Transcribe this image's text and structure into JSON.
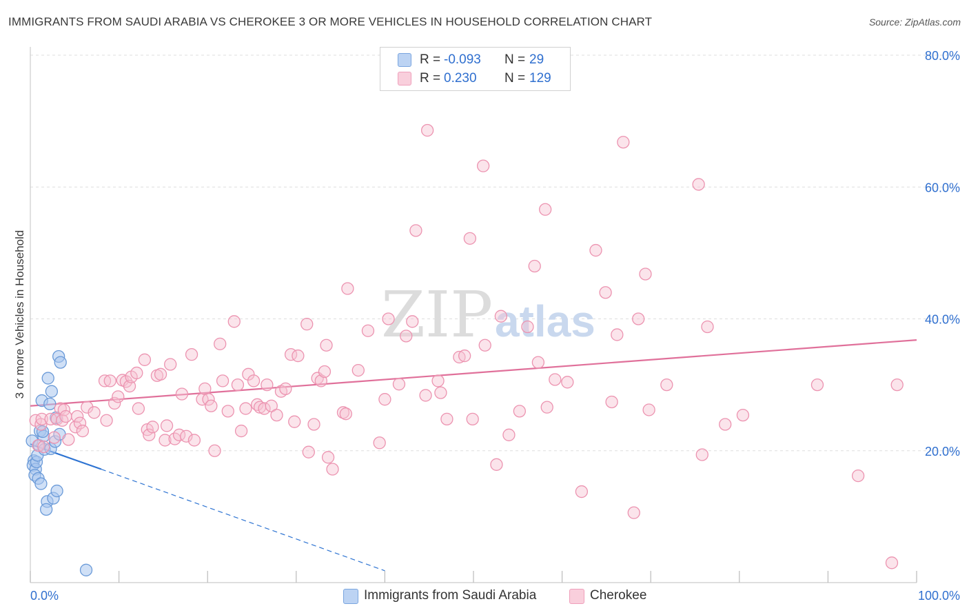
{
  "header": {
    "title": "IMMIGRANTS FROM SAUDI ARABIA VS CHEROKEE 3 OR MORE VEHICLES IN HOUSEHOLD CORRELATION CHART",
    "source": "Source: ZipAtlas.com"
  },
  "watermark": {
    "zip": "ZIP",
    "atlas": "atlas"
  },
  "legend_top": {
    "rows": [
      {
        "r_label": "R =",
        "r_value": "-0.093",
        "n_label": "N =",
        "n_value": "29"
      },
      {
        "r_label": "R =",
        "r_value": "0.230",
        "n_label": "N =",
        "n_value": "129"
      }
    ]
  },
  "legend_bottom": [
    "Immigrants from Saudi Arabia",
    "Cherokee"
  ],
  "colors": {
    "blue_fill": "#a9c6ee",
    "blue_stroke": "#6a9ad8",
    "blue_line": "#2d73d2",
    "pink_fill": "#f6c3d2",
    "pink_stroke": "#ec93b0",
    "pink_line": "#e0709a",
    "grid": "#dddddd",
    "axis_text": "#2f6fcf"
  },
  "chart_data": {
    "type": "scatter",
    "title": "IMMIGRANTS FROM SAUDI ARABIA VS CHEROKEE 3 OR MORE VEHICLES IN HOUSEHOLD CORRELATION CHART",
    "xlabel": "",
    "ylabel": "3 or more Vehicles in Household",
    "xlim": [
      0,
      100
    ],
    "ylim": [
      0,
      80
    ],
    "x_tick_labels": [
      "0.0%",
      "100.0%"
    ],
    "y_ticks": [
      20,
      40,
      60,
      80
    ],
    "y_tick_labels": [
      "20.0%",
      "40.0%",
      "60.0%",
      "80.0%"
    ],
    "grid": true,
    "legend_position": "top-center",
    "series": [
      {
        "name": "Immigrants from Saudi Arabia",
        "R": -0.093,
        "N": 29,
        "trend": {
          "x0": 0,
          "y0": 21.0,
          "x1": 8.0,
          "y1": 17.2,
          "dashed_to": [
            40.0,
            1.8
          ]
        },
        "points": [
          [
            0.2,
            21.5
          ],
          [
            0.4,
            18.5
          ],
          [
            0.3,
            17.8
          ],
          [
            0.6,
            17.2
          ],
          [
            0.7,
            18.3
          ],
          [
            0.5,
            16.3
          ],
          [
            0.9,
            15.8
          ],
          [
            0.8,
            19.3
          ],
          [
            1.0,
            20.8
          ],
          [
            1.1,
            23.0
          ],
          [
            1.2,
            15.0
          ],
          [
            1.3,
            27.6
          ],
          [
            1.5,
            22.2
          ],
          [
            1.6,
            20.2
          ],
          [
            1.9,
            12.3
          ],
          [
            1.8,
            11.1
          ],
          [
            2.0,
            31.0
          ],
          [
            2.2,
            27.1
          ],
          [
            2.4,
            29.0
          ],
          [
            2.3,
            20.3
          ],
          [
            2.6,
            12.8
          ],
          [
            2.8,
            21.4
          ],
          [
            2.9,
            25.0
          ],
          [
            3.0,
            13.9
          ],
          [
            3.2,
            34.3
          ],
          [
            3.3,
            22.5
          ],
          [
            3.4,
            33.4
          ],
          [
            6.3,
            1.9
          ],
          [
            1.4,
            22.9
          ]
        ]
      },
      {
        "name": "Cherokee",
        "R": 0.23,
        "N": 129,
        "trend": {
          "x0": 0,
          "y0": 26.8,
          "x1": 100,
          "y1": 36.8
        },
        "points": [
          [
            0.6,
            24.6
          ],
          [
            0.9,
            20.8
          ],
          [
            1.2,
            24.0
          ],
          [
            1.3,
            24.8
          ],
          [
            1.5,
            20.6
          ],
          [
            2.3,
            24.8
          ],
          [
            2.7,
            22.0
          ],
          [
            3.0,
            24.8
          ],
          [
            3.4,
            26.4
          ],
          [
            3.6,
            24.6
          ],
          [
            3.8,
            26.2
          ],
          [
            4.0,
            25.2
          ],
          [
            4.3,
            21.7
          ],
          [
            5.1,
            23.6
          ],
          [
            5.3,
            25.2
          ],
          [
            5.6,
            24.2
          ],
          [
            5.9,
            23.0
          ],
          [
            6.4,
            26.6
          ],
          [
            7.2,
            25.8
          ],
          [
            8.4,
            30.6
          ],
          [
            8.6,
            24.6
          ],
          [
            9.0,
            30.6
          ],
          [
            9.5,
            27.2
          ],
          [
            9.9,
            28.2
          ],
          [
            10.4,
            30.7
          ],
          [
            10.8,
            30.5
          ],
          [
            11.2,
            29.8
          ],
          [
            11.4,
            31.2
          ],
          [
            12.0,
            31.8
          ],
          [
            12.2,
            26.4
          ],
          [
            12.9,
            33.8
          ],
          [
            13.2,
            23.2
          ],
          [
            13.4,
            22.4
          ],
          [
            13.8,
            23.6
          ],
          [
            14.3,
            31.4
          ],
          [
            14.7,
            31.6
          ],
          [
            15.2,
            21.6
          ],
          [
            15.4,
            23.8
          ],
          [
            15.8,
            33.1
          ],
          [
            16.3,
            21.8
          ],
          [
            16.8,
            22.4
          ],
          [
            17.1,
            28.6
          ],
          [
            17.6,
            22.2
          ],
          [
            18.2,
            34.6
          ],
          [
            18.5,
            21.6
          ],
          [
            19.4,
            27.8
          ],
          [
            19.7,
            29.4
          ],
          [
            20.1,
            27.8
          ],
          [
            20.4,
            26.8
          ],
          [
            20.8,
            20.0
          ],
          [
            21.4,
            36.2
          ],
          [
            21.7,
            30.6
          ],
          [
            22.3,
            26.0
          ],
          [
            23.0,
            39.6
          ],
          [
            23.4,
            30.0
          ],
          [
            23.8,
            23.0
          ],
          [
            24.3,
            26.4
          ],
          [
            24.6,
            31.6
          ],
          [
            25.2,
            30.6
          ],
          [
            25.6,
            27.0
          ],
          [
            25.9,
            26.6
          ],
          [
            26.4,
            26.4
          ],
          [
            26.7,
            30.0
          ],
          [
            27.2,
            26.8
          ],
          [
            27.8,
            25.4
          ],
          [
            28.3,
            29.0
          ],
          [
            28.8,
            29.4
          ],
          [
            29.4,
            34.6
          ],
          [
            29.8,
            24.4
          ],
          [
            30.2,
            34.4
          ],
          [
            31.2,
            39.2
          ],
          [
            31.4,
            19.8
          ],
          [
            32.0,
            24.0
          ],
          [
            32.4,
            31.0
          ],
          [
            32.8,
            30.6
          ],
          [
            33.2,
            32.0
          ],
          [
            33.4,
            36.0
          ],
          [
            33.6,
            19.0
          ],
          [
            34.1,
            17.2
          ],
          [
            35.3,
            25.8
          ],
          [
            35.6,
            25.6
          ],
          [
            35.8,
            44.6
          ],
          [
            37.0,
            32.2
          ],
          [
            38.1,
            38.2
          ],
          [
            39.4,
            21.2
          ],
          [
            40.0,
            27.8
          ],
          [
            40.4,
            40.0
          ],
          [
            41.6,
            30.1
          ],
          [
            42.4,
            37.4
          ],
          [
            43.1,
            39.6
          ],
          [
            43.5,
            53.4
          ],
          [
            44.8,
            68.6
          ],
          [
            44.6,
            28.4
          ],
          [
            46.0,
            30.6
          ],
          [
            46.3,
            28.8
          ],
          [
            47.0,
            24.8
          ],
          [
            48.4,
            34.2
          ],
          [
            49.0,
            34.4
          ],
          [
            49.6,
            52.2
          ],
          [
            49.9,
            24.8
          ],
          [
            51.1,
            63.2
          ],
          [
            51.3,
            36.0
          ],
          [
            52.6,
            17.9
          ],
          [
            53.1,
            40.4
          ],
          [
            54.0,
            22.4
          ],
          [
            55.2,
            26.0
          ],
          [
            56.1,
            38.8
          ],
          [
            56.9,
            48.0
          ],
          [
            57.3,
            33.4
          ],
          [
            58.1,
            56.6
          ],
          [
            58.3,
            26.6
          ],
          [
            59.2,
            30.8
          ],
          [
            60.6,
            30.4
          ],
          [
            62.2,
            13.8
          ],
          [
            63.8,
            50.4
          ],
          [
            64.9,
            44.0
          ],
          [
            65.6,
            27.4
          ],
          [
            66.2,
            37.6
          ],
          [
            66.9,
            66.8
          ],
          [
            68.1,
            10.6
          ],
          [
            68.6,
            40.0
          ],
          [
            69.4,
            46.8
          ],
          [
            69.8,
            26.2
          ],
          [
            71.8,
            30.0
          ],
          [
            75.4,
            60.4
          ],
          [
            75.8,
            19.4
          ],
          [
            76.4,
            38.8
          ],
          [
            78.4,
            24.0
          ],
          [
            80.4,
            25.4
          ],
          [
            88.8,
            30.0
          ],
          [
            93.4,
            16.2
          ],
          [
            97.2,
            3.0
          ],
          [
            97.8,
            30.0
          ]
        ]
      }
    ]
  }
}
